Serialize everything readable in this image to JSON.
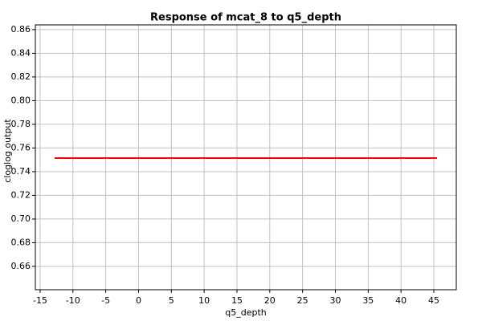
{
  "chart_data": {
    "type": "line",
    "title": "Response of mcat_8 to q5_depth",
    "xlabel": "q5_depth",
    "ylabel": "cloglog output",
    "x": [
      -12.8,
      45.5
    ],
    "series": [
      {
        "name": "mcat_8",
        "color": "#ff0000",
        "values": [
          0.7515,
          0.7515
        ]
      }
    ],
    "xlim": [
      -15.73,
      48.43
    ],
    "ylim": [
      0.6403,
      0.864
    ],
    "xticks": [
      -15,
      -10,
      -5,
      0,
      5,
      10,
      15,
      20,
      25,
      30,
      35,
      40,
      45
    ],
    "yticks": [
      0.66,
      0.68,
      {
        "value": 0.7,
        "label": "0.70"
      },
      0.72,
      0.74,
      0.76,
      0.78,
      {
        "value": 0.8,
        "label": "0.80"
      },
      0.82,
      0.84,
      0.86
    ],
    "grid": true
  }
}
